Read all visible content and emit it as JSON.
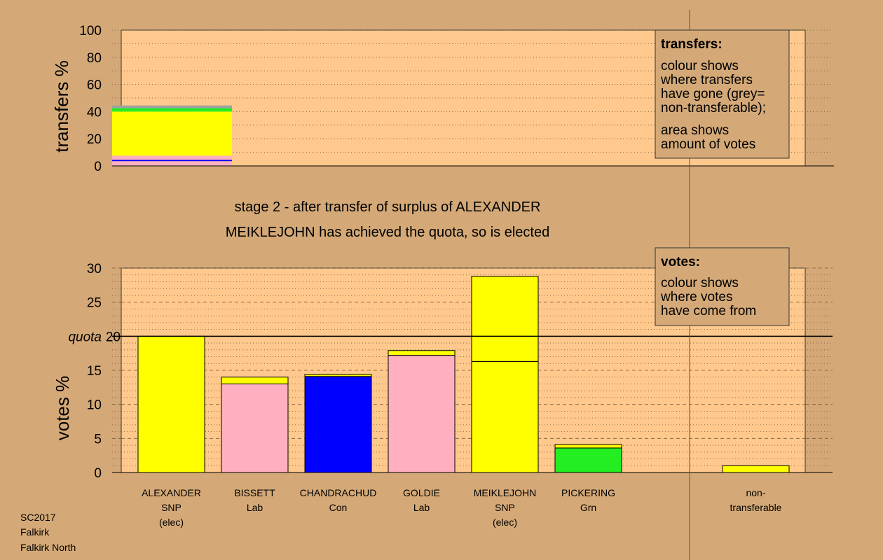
{
  "chart_data": [
    {
      "type": "bar",
      "stacked": true,
      "ylabel": "transfers %",
      "ylim": [
        0,
        100
      ],
      "yticks": [
        0,
        20,
        40,
        60,
        80,
        100
      ],
      "bars": [
        {
          "category": "ALEXANDER",
          "segments": [
            {
              "to": "BISSETT",
              "party": "Lab",
              "color": "#ffb0c0",
              "value": 3.5
            },
            {
              "to": "CHANDRACHUD",
              "party": "Con",
              "color": "#0000ff",
              "value": 1.0
            },
            {
              "to": "GOLDIE",
              "party": "Lab",
              "color": "#ffb0c0",
              "value": 3.0
            },
            {
              "to": "MEIKLEJOHN",
              "party": "SNP",
              "color": "#ffff00",
              "value": 32.5
            },
            {
              "to": "PICKERING",
              "party": "Grn",
              "color": "#22ee22",
              "value": 2.5
            },
            {
              "to": "non-transferable",
              "color": "#a0a0a0",
              "value": 2.0
            }
          ]
        }
      ],
      "legend": {
        "title": "transfers:",
        "lines1": [
          "colour shows",
          "where transfers",
          "have gone (grey=",
          "non-transferable);"
        ],
        "lines2": [
          "area shows",
          "amount of votes"
        ]
      }
    },
    {
      "type": "bar",
      "stacked": true,
      "ylabel": "votes %",
      "ylim": [
        0,
        30
      ],
      "yticks": [
        0,
        5,
        10,
        15,
        20,
        25,
        30
      ],
      "quota": 20,
      "quota_label": "quota",
      "candidates": [
        {
          "name": "ALEXANDER",
          "party": "SNP",
          "note": "(elec)",
          "segments": [
            {
              "color": "#ffff00",
              "value": 20.0
            }
          ]
        },
        {
          "name": "BISSETT",
          "party": "Lab",
          "note": "",
          "segments": [
            {
              "color": "#ffb0c0",
              "value": 13.0
            },
            {
              "color": "#ffff00",
              "value": 1.0
            }
          ]
        },
        {
          "name": "CHANDRACHUD",
          "party": "Con",
          "note": "",
          "segments": [
            {
              "color": "#0000ff",
              "value": 14.1
            },
            {
              "color": "#ffff00",
              "value": 0.3
            }
          ]
        },
        {
          "name": "GOLDIE",
          "party": "Lab",
          "note": "",
          "segments": [
            {
              "color": "#ffb0c0",
              "value": 17.2
            },
            {
              "color": "#ffff00",
              "value": 0.7
            }
          ]
        },
        {
          "name": "MEIKLEJOHN",
          "party": "SNP",
          "note": "(elec)",
          "segments": [
            {
              "color": "#ffff00",
              "value": 16.3
            },
            {
              "color": "#ffff00",
              "value": 12.5
            }
          ]
        },
        {
          "name": "PICKERING",
          "party": "Grn",
          "note": "",
          "segments": [
            {
              "color": "#22ee22",
              "value": 3.6
            },
            {
              "color": "#ffff00",
              "value": 0.5
            }
          ]
        }
      ],
      "nontransferable": {
        "label1": "non-",
        "label2": "transferable",
        "segments": [
          {
            "color": "#ffff00",
            "value": 1.0
          }
        ]
      },
      "legend": {
        "title": "votes:",
        "lines": [
          "colour shows",
          "where votes",
          "have come from"
        ]
      }
    }
  ],
  "captions": {
    "stage": "stage 2 - after transfer of surplus of ALEXANDER",
    "elected": "MEIKLEJOHN has achieved the quota, so is elected"
  },
  "footer": {
    "line1": "SC2017",
    "line2": "Falkirk",
    "line3": "Falkirk North"
  },
  "colors": {
    "background": "#d4a977",
    "plot_area": "#ffc88c"
  }
}
